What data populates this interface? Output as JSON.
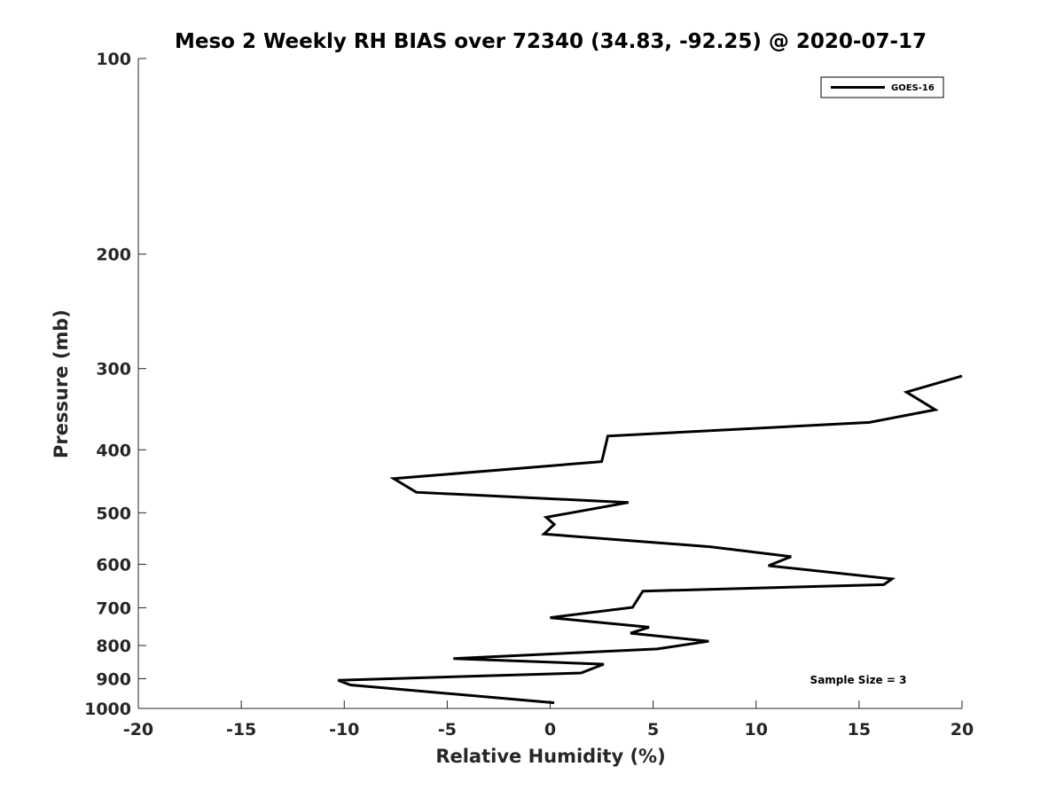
{
  "chart_data": {
    "type": "line",
    "title": "Meso 2 Weekly RH BIAS over 72340 (34.83, -92.25) @ 2020-07-17",
    "xlabel": "Relative Humidity (%)",
    "ylabel": "Pressure (mb)",
    "xlim": [
      -20,
      20
    ],
    "ylim": [
      100,
      1000
    ],
    "y_scale": "log",
    "y_reversed": true,
    "x_ticks": [
      "-20",
      "-15",
      "-10",
      "-5",
      "0",
      "5",
      "10",
      "15",
      "20"
    ],
    "x_tick_values": [
      -20,
      -15,
      -10,
      -5,
      0,
      5,
      10,
      15,
      20
    ],
    "y_ticks": [
      "100",
      "200",
      "300",
      "400",
      "500",
      "600",
      "700",
      "800",
      "900",
      "1000"
    ],
    "y_tick_values": [
      100,
      200,
      300,
      400,
      500,
      600,
      700,
      800,
      900,
      1000
    ],
    "grid": false,
    "legend_position": "top-right",
    "series": [
      {
        "name": "GOES-16",
        "color": "#000000",
        "x": [
          20.0,
          17.3,
          18.7,
          15.5,
          2.8,
          2.6,
          2.5,
          -7.6,
          -6.5,
          3.8,
          -0.2,
          0.2,
          -0.3,
          7.8,
          11.7,
          10.6,
          16.6,
          16.2,
          4.5,
          4.3,
          4.0,
          0.0,
          4.8,
          3.9,
          7.7,
          5.2,
          -4.7,
          2.6,
          1.5,
          -10.3,
          -9.7,
          0.2
        ],
        "y": [
          308,
          326,
          347,
          363,
          381,
          405,
          417,
          443,
          465,
          482,
          508,
          521,
          539,
          564,
          584,
          603,
          632,
          645,
          660,
          675,
          699,
          725,
          750,
          766,
          788,
          810,
          838,
          855,
          882,
          905,
          920,
          980
        ]
      }
    ],
    "annotations": [
      "Sample Size = 3"
    ]
  }
}
